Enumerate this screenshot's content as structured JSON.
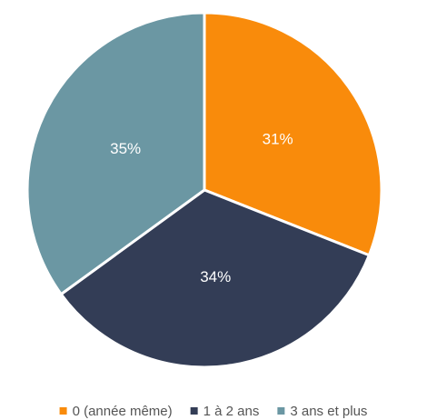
{
  "chart_data": {
    "type": "pie",
    "categories": [
      "0 (année même)",
      "1 à 2 ans",
      "3 ans et plus"
    ],
    "values": [
      31,
      34,
      35
    ],
    "value_labels": [
      "31%",
      "34%",
      "35%"
    ],
    "colors": [
      "#f98b0b",
      "#333d56",
      "#6b97a3"
    ],
    "legend": "bottom"
  }
}
